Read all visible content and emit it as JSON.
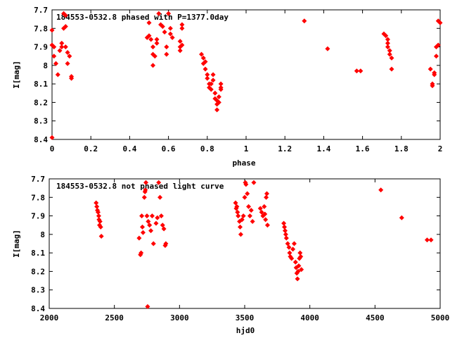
{
  "chart_data": [
    {
      "type": "scatter",
      "title": "184553-0532.8 phased with P=1377.0day",
      "xlabel": "phase",
      "ylabel": "I[mag]",
      "xlim": [
        0,
        2
      ],
      "ylim": [
        8.4,
        7.7
      ],
      "y_inverted": true,
      "grid": false,
      "marker_color": "#ff0000",
      "marker": "filled-diamond",
      "xticks": [
        0,
        0.2,
        0.4,
        0.6,
        0.8,
        1,
        1.2,
        1.4,
        1.6,
        1.8,
        2
      ],
      "xtick_labels": [
        "0",
        "0.2",
        "0.4",
        "0.6",
        "0.8",
        "1",
        "1.2",
        "1.4",
        "1.6",
        "1.8",
        "2"
      ],
      "yticks": [
        7.7,
        7.8,
        7.9,
        8,
        8.1,
        8.2,
        8.3,
        8.4
      ],
      "ytick_labels": [
        "7.7",
        "7.8",
        "7.9",
        "8",
        "8.1",
        "8.2",
        "8.3",
        "8.4"
      ],
      "points": [
        [
          0.0,
          8.39
        ],
        [
          0.0,
          7.81
        ],
        [
          0.0,
          7.89
        ],
        [
          0.01,
          7.9
        ],
        [
          0.01,
          7.95
        ],
        [
          0.02,
          7.99
        ],
        [
          0.03,
          8.05
        ],
        [
          0.04,
          7.92
        ],
        [
          0.05,
          7.9
        ],
        [
          0.05,
          7.88
        ],
        [
          0.06,
          7.8
        ],
        [
          0.06,
          7.72
        ],
        [
          0.07,
          7.73
        ],
        [
          0.07,
          7.79
        ],
        [
          0.07,
          7.9
        ],
        [
          0.08,
          7.93
        ],
        [
          0.08,
          7.99
        ],
        [
          0.09,
          7.95
        ],
        [
          0.1,
          8.06
        ],
        [
          0.1,
          8.07
        ],
        [
          0.49,
          7.85
        ],
        [
          0.5,
          7.84
        ],
        [
          0.5,
          7.77
        ],
        [
          0.51,
          7.86
        ],
        [
          0.52,
          7.9
        ],
        [
          0.52,
          7.94
        ],
        [
          0.52,
          8.0
        ],
        [
          0.53,
          7.95
        ],
        [
          0.54,
          7.88
        ],
        [
          0.54,
          7.86
        ],
        [
          0.55,
          7.72
        ],
        [
          0.56,
          7.78
        ],
        [
          0.57,
          7.79
        ],
        [
          0.58,
          7.82
        ],
        [
          0.59,
          7.9
        ],
        [
          0.59,
          7.94
        ],
        [
          0.6,
          7.72
        ],
        [
          0.61,
          7.8
        ],
        [
          0.61,
          7.83
        ],
        [
          0.62,
          7.85
        ],
        [
          0.66,
          7.87
        ],
        [
          0.66,
          7.9
        ],
        [
          0.66,
          7.92
        ],
        [
          0.67,
          7.8
        ],
        [
          0.67,
          7.78
        ],
        [
          0.67,
          7.89
        ],
        [
          0.77,
          7.94
        ],
        [
          0.78,
          7.96
        ],
        [
          0.78,
          7.99
        ],
        [
          0.79,
          7.98
        ],
        [
          0.79,
          8.02
        ],
        [
          0.8,
          8.05
        ],
        [
          0.8,
          8.07
        ],
        [
          0.81,
          8.1
        ],
        [
          0.81,
          8.12
        ],
        [
          0.82,
          8.13
        ],
        [
          0.83,
          8.08
        ],
        [
          0.83,
          8.05
        ],
        [
          0.84,
          8.15
        ],
        [
          0.84,
          8.18
        ],
        [
          0.85,
          8.21
        ],
        [
          0.85,
          8.24
        ],
        [
          0.86,
          8.2
        ],
        [
          0.86,
          8.17
        ],
        [
          0.87,
          8.13
        ],
        [
          0.87,
          8.1
        ],
        [
          0.87,
          8.12
        ],
        [
          0.85,
          8.19
        ],
        [
          0.82,
          8.1
        ],
        [
          1.3,
          7.76
        ],
        [
          1.42,
          7.91
        ],
        [
          1.57,
          8.03
        ],
        [
          1.59,
          8.03
        ],
        [
          1.71,
          7.83
        ],
        [
          1.72,
          7.84
        ],
        [
          1.73,
          7.88
        ],
        [
          1.73,
          7.9
        ],
        [
          1.74,
          7.92
        ],
        [
          1.74,
          7.94
        ],
        [
          1.75,
          7.96
        ],
        [
          1.75,
          8.02
        ],
        [
          1.73,
          7.86
        ],
        [
          1.95,
          8.02
        ],
        [
          1.96,
          8.11
        ],
        [
          1.96,
          8.1
        ],
        [
          1.97,
          8.05
        ],
        [
          1.97,
          8.04
        ],
        [
          1.98,
          7.95
        ],
        [
          1.98,
          7.9
        ],
        [
          1.99,
          7.89
        ],
        [
          1.99,
          7.76
        ],
        [
          2.0,
          7.77
        ]
      ]
    },
    {
      "type": "scatter",
      "title": "184553-0532.8 not phased light curve",
      "xlabel": "hjd0",
      "ylabel": "I[mag]",
      "xlim": [
        2000,
        5000
      ],
      "ylim": [
        8.4,
        7.7
      ],
      "y_inverted": true,
      "grid": false,
      "marker_color": "#ff0000",
      "marker": "filled-diamond",
      "xticks": [
        2000,
        2500,
        3000,
        3500,
        4000,
        4500,
        5000
      ],
      "xtick_labels": [
        "2000",
        "2500",
        "3000",
        "3500",
        "4000",
        "4500",
        "5000"
      ],
      "yticks": [
        7.7,
        7.8,
        7.9,
        8,
        8.1,
        8.2,
        8.3,
        8.4
      ],
      "ytick_labels": [
        "7.7",
        "7.8",
        "7.9",
        "8",
        "8.1",
        "8.2",
        "8.3",
        "8.4"
      ],
      "points": [
        [
          2360,
          7.83
        ],
        [
          2365,
          7.85
        ],
        [
          2370,
          7.87
        ],
        [
          2375,
          7.88
        ],
        [
          2380,
          7.9
        ],
        [
          2382,
          7.92
        ],
        [
          2386,
          7.95
        ],
        [
          2390,
          7.93
        ],
        [
          2395,
          7.96
        ],
        [
          2400,
          8.01
        ],
        [
          2690,
          8.02
        ],
        [
          2700,
          8.11
        ],
        [
          2705,
          8.1
        ],
        [
          2710,
          7.9
        ],
        [
          2715,
          7.96
        ],
        [
          2720,
          7.99
        ],
        [
          2730,
          7.8
        ],
        [
          2735,
          7.77
        ],
        [
          2738,
          7.76
        ],
        [
          2742,
          7.72
        ],
        [
          2750,
          7.9
        ],
        [
          2755,
          8.39
        ],
        [
          2760,
          7.93
        ],
        [
          2770,
          7.95
        ],
        [
          2780,
          7.98
        ],
        [
          2790,
          7.9
        ],
        [
          2800,
          8.05
        ],
        [
          2820,
          7.94
        ],
        [
          2830,
          7.91
        ],
        [
          2840,
          7.72
        ],
        [
          2850,
          7.8
        ],
        [
          2860,
          7.9
        ],
        [
          2870,
          7.95
        ],
        [
          2880,
          7.97
        ],
        [
          2890,
          8.06
        ],
        [
          2895,
          8.05
        ],
        [
          3430,
          7.83
        ],
        [
          3435,
          7.86
        ],
        [
          3440,
          7.85
        ],
        [
          3445,
          7.88
        ],
        [
          3450,
          7.9
        ],
        [
          3460,
          7.93
        ],
        [
          3465,
          7.96
        ],
        [
          3470,
          8.0
        ],
        [
          3480,
          7.92
        ],
        [
          3490,
          7.9
        ],
        [
          3500,
          7.8
        ],
        [
          3505,
          7.72
        ],
        [
          3510,
          7.73
        ],
        [
          3520,
          7.78
        ],
        [
          3530,
          7.85
        ],
        [
          3540,
          7.9
        ],
        [
          3550,
          7.87
        ],
        [
          3560,
          7.93
        ],
        [
          3570,
          7.72
        ],
        [
          3620,
          7.86
        ],
        [
          3630,
          7.88
        ],
        [
          3640,
          7.9
        ],
        [
          3650,
          7.85
        ],
        [
          3655,
          7.89
        ],
        [
          3660,
          7.92
        ],
        [
          3665,
          7.8
        ],
        [
          3670,
          7.78
        ],
        [
          3675,
          7.95
        ],
        [
          3800,
          7.94
        ],
        [
          3805,
          7.96
        ],
        [
          3810,
          7.98
        ],
        [
          3815,
          8.0
        ],
        [
          3820,
          8.02
        ],
        [
          3830,
          8.05
        ],
        [
          3840,
          8.07
        ],
        [
          3845,
          8.1
        ],
        [
          3850,
          8.12
        ],
        [
          3860,
          8.13
        ],
        [
          3870,
          8.08
        ],
        [
          3880,
          8.05
        ],
        [
          3890,
          8.15
        ],
        [
          3895,
          8.18
        ],
        [
          3900,
          8.21
        ],
        [
          3905,
          8.24
        ],
        [
          3910,
          8.2
        ],
        [
          3915,
          8.17
        ],
        [
          3920,
          8.13
        ],
        [
          3925,
          8.1
        ],
        [
          3930,
          8.12
        ],
        [
          3935,
          8.19
        ],
        [
          4545,
          7.76
        ],
        [
          4705,
          7.91
        ],
        [
          4900,
          8.03
        ],
        [
          4930,
          8.03
        ]
      ]
    }
  ]
}
